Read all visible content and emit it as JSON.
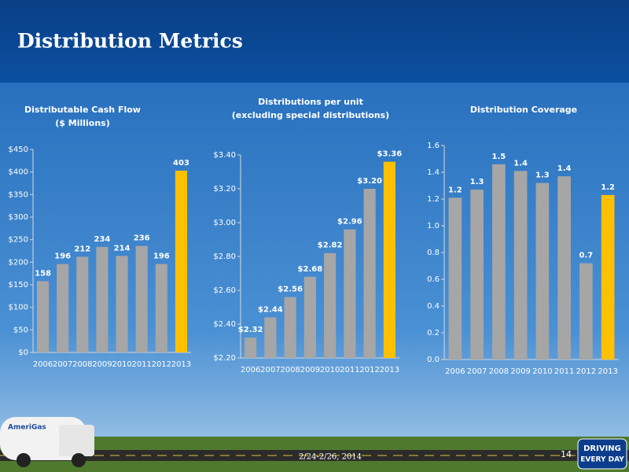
{
  "title": "Distribution Metrics",
  "footer": {
    "date": "2/24-2/26, 2014",
    "page": "14"
  },
  "brand": {
    "logo": "AmeriGas",
    "tagline": [
      "DRIVING",
      "EVERY DAY"
    ]
  },
  "chart_data": [
    {
      "type": "bar",
      "title": "Distributable Cash Flow",
      "subtitle": "($ Millions)",
      "categories": [
        "2006",
        "2007",
        "2008",
        "2009",
        "2010",
        "2011",
        "2012",
        "2013"
      ],
      "values": [
        158,
        196,
        212,
        234,
        214,
        236,
        196,
        403
      ],
      "colors": [
        "#a6a6a6",
        "#a6a6a6",
        "#a6a6a6",
        "#a6a6a6",
        "#a6a6a6",
        "#a6a6a6",
        "#a6a6a6",
        "#ffc000"
      ],
      "ylim": [
        0,
        450
      ],
      "yticks": [
        {
          "value": 0,
          "label": "$0"
        },
        {
          "value": 50,
          "label": "$50"
        },
        {
          "value": 100,
          "label": "$100"
        },
        {
          "value": 150,
          "label": "$150"
        },
        {
          "value": 200,
          "label": "$200"
        },
        {
          "value": 250,
          "label": "$250"
        },
        {
          "value": 300,
          "label": "$300"
        },
        {
          "value": 350,
          "label": "$350"
        },
        {
          "value": 400,
          "label": "$400"
        },
        {
          "value": 450,
          "label": "$450"
        }
      ],
      "grid": false
    },
    {
      "type": "bar",
      "title": "Distributions per unit",
      "subtitle": "(excluding special distributions)",
      "categories": [
        "2006",
        "2007",
        "2008",
        "2009",
        "2010",
        "2011",
        "2012",
        "2013"
      ],
      "values": [
        2.32,
        2.44,
        2.56,
        2.68,
        2.82,
        2.96,
        3.2,
        3.36
      ],
      "value_labels": [
        "$2.32",
        "$2.44",
        "$2.56",
        "$2.68",
        "$2.82",
        "$2.96",
        "$3.20",
        "$3.36"
      ],
      "colors": [
        "#a6a6a6",
        "#a6a6a6",
        "#a6a6a6",
        "#a6a6a6",
        "#a6a6a6",
        "#a6a6a6",
        "#a6a6a6",
        "#ffc000"
      ],
      "ylim": [
        2.2,
        3.4
      ],
      "yticks": [
        {
          "value": 2.2,
          "label": "$2.20"
        },
        {
          "value": 2.4,
          "label": "$2.40"
        },
        {
          "value": 2.6,
          "label": "$2.60"
        },
        {
          "value": 2.8,
          "label": "$2.80"
        },
        {
          "value": 3.0,
          "label": "$3.00"
        },
        {
          "value": 3.2,
          "label": "$3.20"
        },
        {
          "value": 3.4,
          "label": "$3.40"
        }
      ],
      "grid": false
    },
    {
      "type": "bar",
      "title": "Distribution Coverage",
      "categories": [
        "2006",
        "2007",
        "2008",
        "2009",
        "2010",
        "2011",
        "2012",
        "2013"
      ],
      "values": [
        1.21,
        1.27,
        1.46,
        1.41,
        1.32,
        1.37,
        0.72,
        1.23
      ],
      "value_labels": [
        "1.2",
        "1.3",
        "1.5",
        "1.4",
        "1.3",
        "1.4",
        "0.7",
        "1.2"
      ],
      "colors": [
        "#a6a6a6",
        "#a6a6a6",
        "#a6a6a6",
        "#a6a6a6",
        "#a6a6a6",
        "#a6a6a6",
        "#a6a6a6",
        "#ffc000"
      ],
      "ylim": [
        0,
        1.6
      ],
      "yticks": [
        {
          "value": 0,
          "label": "0.0"
        },
        0.2,
        0.4,
        0.6,
        0.8,
        {
          "value": 1.0,
          "label": "1.0"
        },
        1.2,
        1.4,
        1.6
      ],
      "grid": false
    }
  ]
}
